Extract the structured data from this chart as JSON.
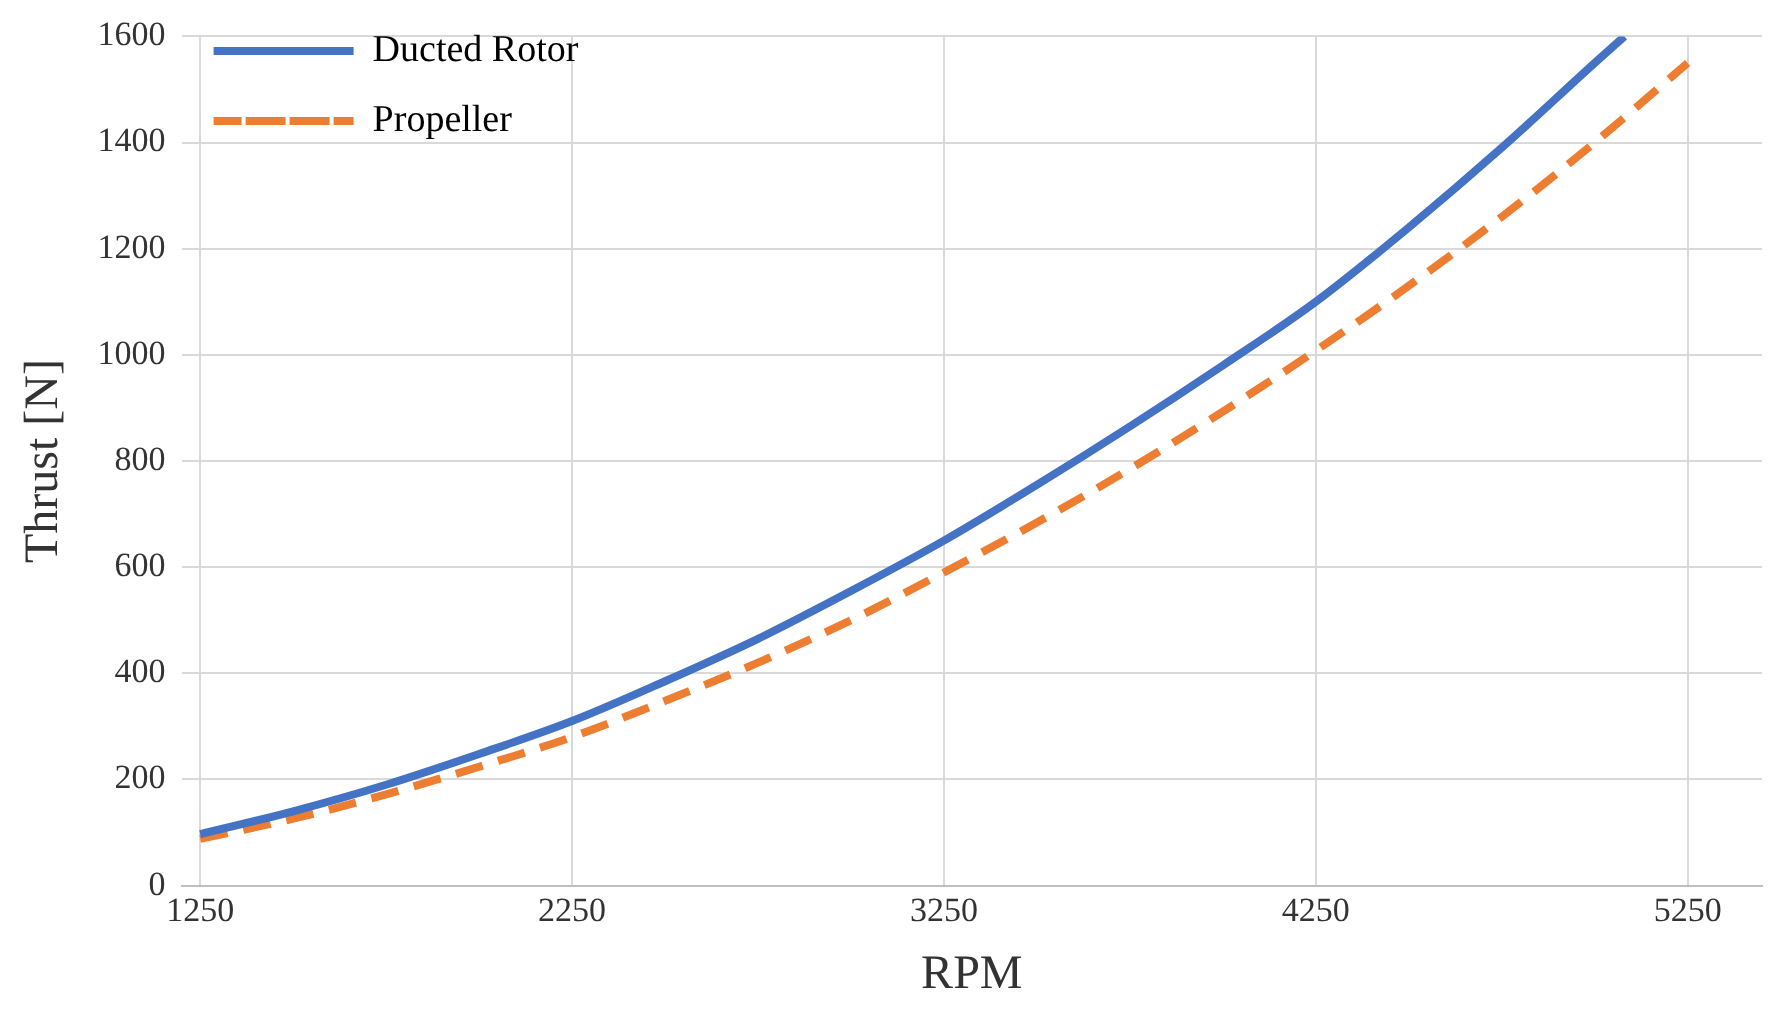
{
  "chart_data": {
    "type": "line",
    "xlabel": "RPM",
    "ylabel": "Thrust [N]",
    "xlim": [
      1200,
      5450
    ],
    "xticks": [
      1250,
      2250,
      3250,
      4250,
      5250
    ],
    "ylim": [
      0,
      1600
    ],
    "yticks": [
      0,
      200,
      400,
      600,
      800,
      1000,
      1200,
      1400,
      1600
    ],
    "grid": true,
    "legend": "top left",
    "marker": "none",
    "series": [
      {
        "name": "Ducted Rotor",
        "color": "#4472c4",
        "line_style": "solid",
        "x": [
          1250,
          1500,
          1750,
          2000,
          2250,
          2500,
          2750,
          3000,
          3250,
          3500,
          3750,
          4000,
          4250,
          4500,
          4750,
          5000,
          5080
        ],
        "values": [
          97,
          140,
          190,
          248,
          310,
          385,
          465,
          555,
          650,
          755,
          865,
          980,
          1100,
          1240,
          1390,
          1550,
          1600
        ]
      },
      {
        "name": "Propeller",
        "color": "#ed7d31",
        "line_style": "dashed",
        "x": [
          1250,
          1500,
          1750,
          2000,
          2250,
          2500,
          2750,
          3000,
          3250,
          3500,
          3750,
          4000,
          4250,
          4500,
          4750,
          5000,
          5250
        ],
        "values": [
          88,
          126,
          172,
          224,
          280,
          348,
          420,
          500,
          590,
          684,
          785,
          893,
          1008,
          1130,
          1260,
          1400,
          1550
        ]
      }
    ]
  }
}
